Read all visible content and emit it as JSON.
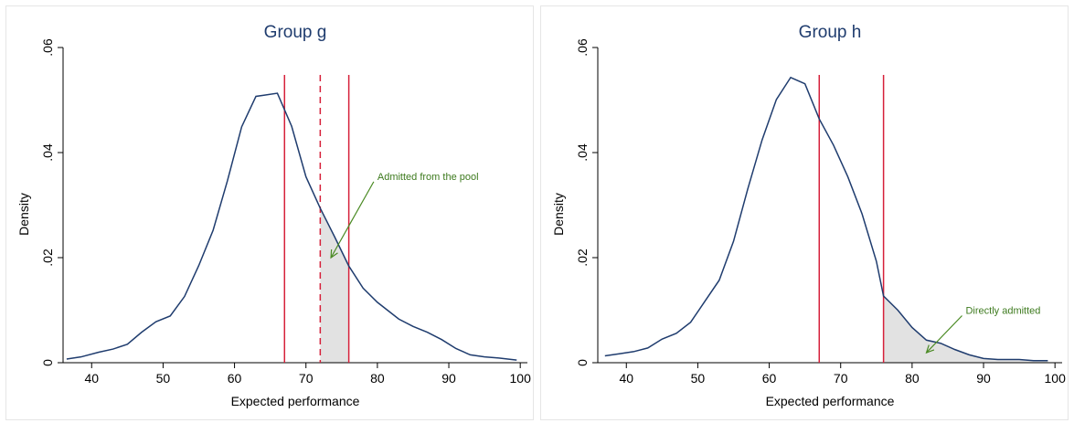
{
  "colors": {
    "curve": "#1f3c6e",
    "cutoff": "#d6203a",
    "shade": "#e2e2e2",
    "annotation": "#4a8a23",
    "title": "#1f3c6e"
  },
  "chart_data": [
    {
      "type": "line",
      "title": "Group g",
      "xlabel": "Expected performance",
      "ylabel": "Density",
      "xlim": [
        36,
        101
      ],
      "ylim": [
        0,
        0.06
      ],
      "xticks": [
        40,
        50,
        60,
        70,
        80,
        90,
        100
      ],
      "yticks": [
        0,
        0.02,
        0.04,
        0.06
      ],
      "ytick_labels": [
        "0",
        ".02",
        ".04",
        ".06"
      ],
      "grid": false,
      "x": [
        36.5,
        38.5,
        41,
        43,
        45,
        47,
        49,
        51,
        53,
        55,
        57,
        59,
        61,
        63,
        64,
        66,
        68,
        70,
        72,
        74,
        76,
        78,
        80,
        83,
        85,
        87,
        89,
        91,
        93,
        95,
        97,
        99.5
      ],
      "y": [
        0.0007,
        0.0011,
        0.002,
        0.0026,
        0.0035,
        0.0058,
        0.0078,
        0.0089,
        0.0126,
        0.0185,
        0.0252,
        0.0346,
        0.0449,
        0.0507,
        0.0509,
        0.0513,
        0.045,
        0.0354,
        0.0294,
        0.024,
        0.0184,
        0.0142,
        0.0115,
        0.0083,
        0.0069,
        0.0058,
        0.0044,
        0.0027,
        0.0015,
        0.0011,
        0.0009,
        0.0005
      ],
      "vlines": [
        {
          "x": 67,
          "style": "solid"
        },
        {
          "x": 72,
          "style": "dashed"
        },
        {
          "x": 76,
          "style": "solid"
        }
      ],
      "shade_range": [
        72,
        76
      ],
      "annotation": {
        "text": "Admitted from the pool",
        "text_at": [
          80,
          0.0355
        ],
        "arrow_to": [
          73.5,
          0.02
        ]
      }
    },
    {
      "type": "line",
      "title": "Group h",
      "xlabel": "Expected performance",
      "ylabel": "Density",
      "xlim": [
        36,
        101
      ],
      "ylim": [
        0,
        0.06
      ],
      "xticks": [
        40,
        50,
        60,
        70,
        80,
        90,
        100
      ],
      "yticks": [
        0,
        0.02,
        0.04,
        0.06
      ],
      "ytick_labels": [
        "0",
        ".02",
        ".04",
        ".06"
      ],
      "grid": false,
      "x": [
        37,
        39,
        41,
        43,
        45,
        47,
        49,
        51,
        53,
        55,
        57,
        59,
        61,
        63,
        65,
        67,
        69,
        71,
        73,
        75,
        76,
        78,
        80,
        82,
        84,
        86,
        88,
        90,
        92,
        95,
        97,
        99
      ],
      "y": [
        0.0013,
        0.0017,
        0.0021,
        0.0028,
        0.0045,
        0.0056,
        0.0077,
        0.0117,
        0.0157,
        0.0231,
        0.0331,
        0.0424,
        0.0501,
        0.0543,
        0.0531,
        0.0464,
        0.0414,
        0.0354,
        0.0283,
        0.0193,
        0.0127,
        0.01,
        0.0067,
        0.0043,
        0.0037,
        0.0025,
        0.0015,
        0.0008,
        0.0006,
        0.0006,
        0.0004,
        0.0004
      ],
      "vlines": [
        {
          "x": 67,
          "style": "solid"
        },
        {
          "x": 76,
          "style": "solid"
        }
      ],
      "shade_range": [
        76,
        99
      ],
      "annotation": {
        "text": "Directly admitted",
        "text_at": [
          87.5,
          0.01
        ],
        "arrow_to": [
          82,
          0.0019
        ]
      }
    }
  ]
}
